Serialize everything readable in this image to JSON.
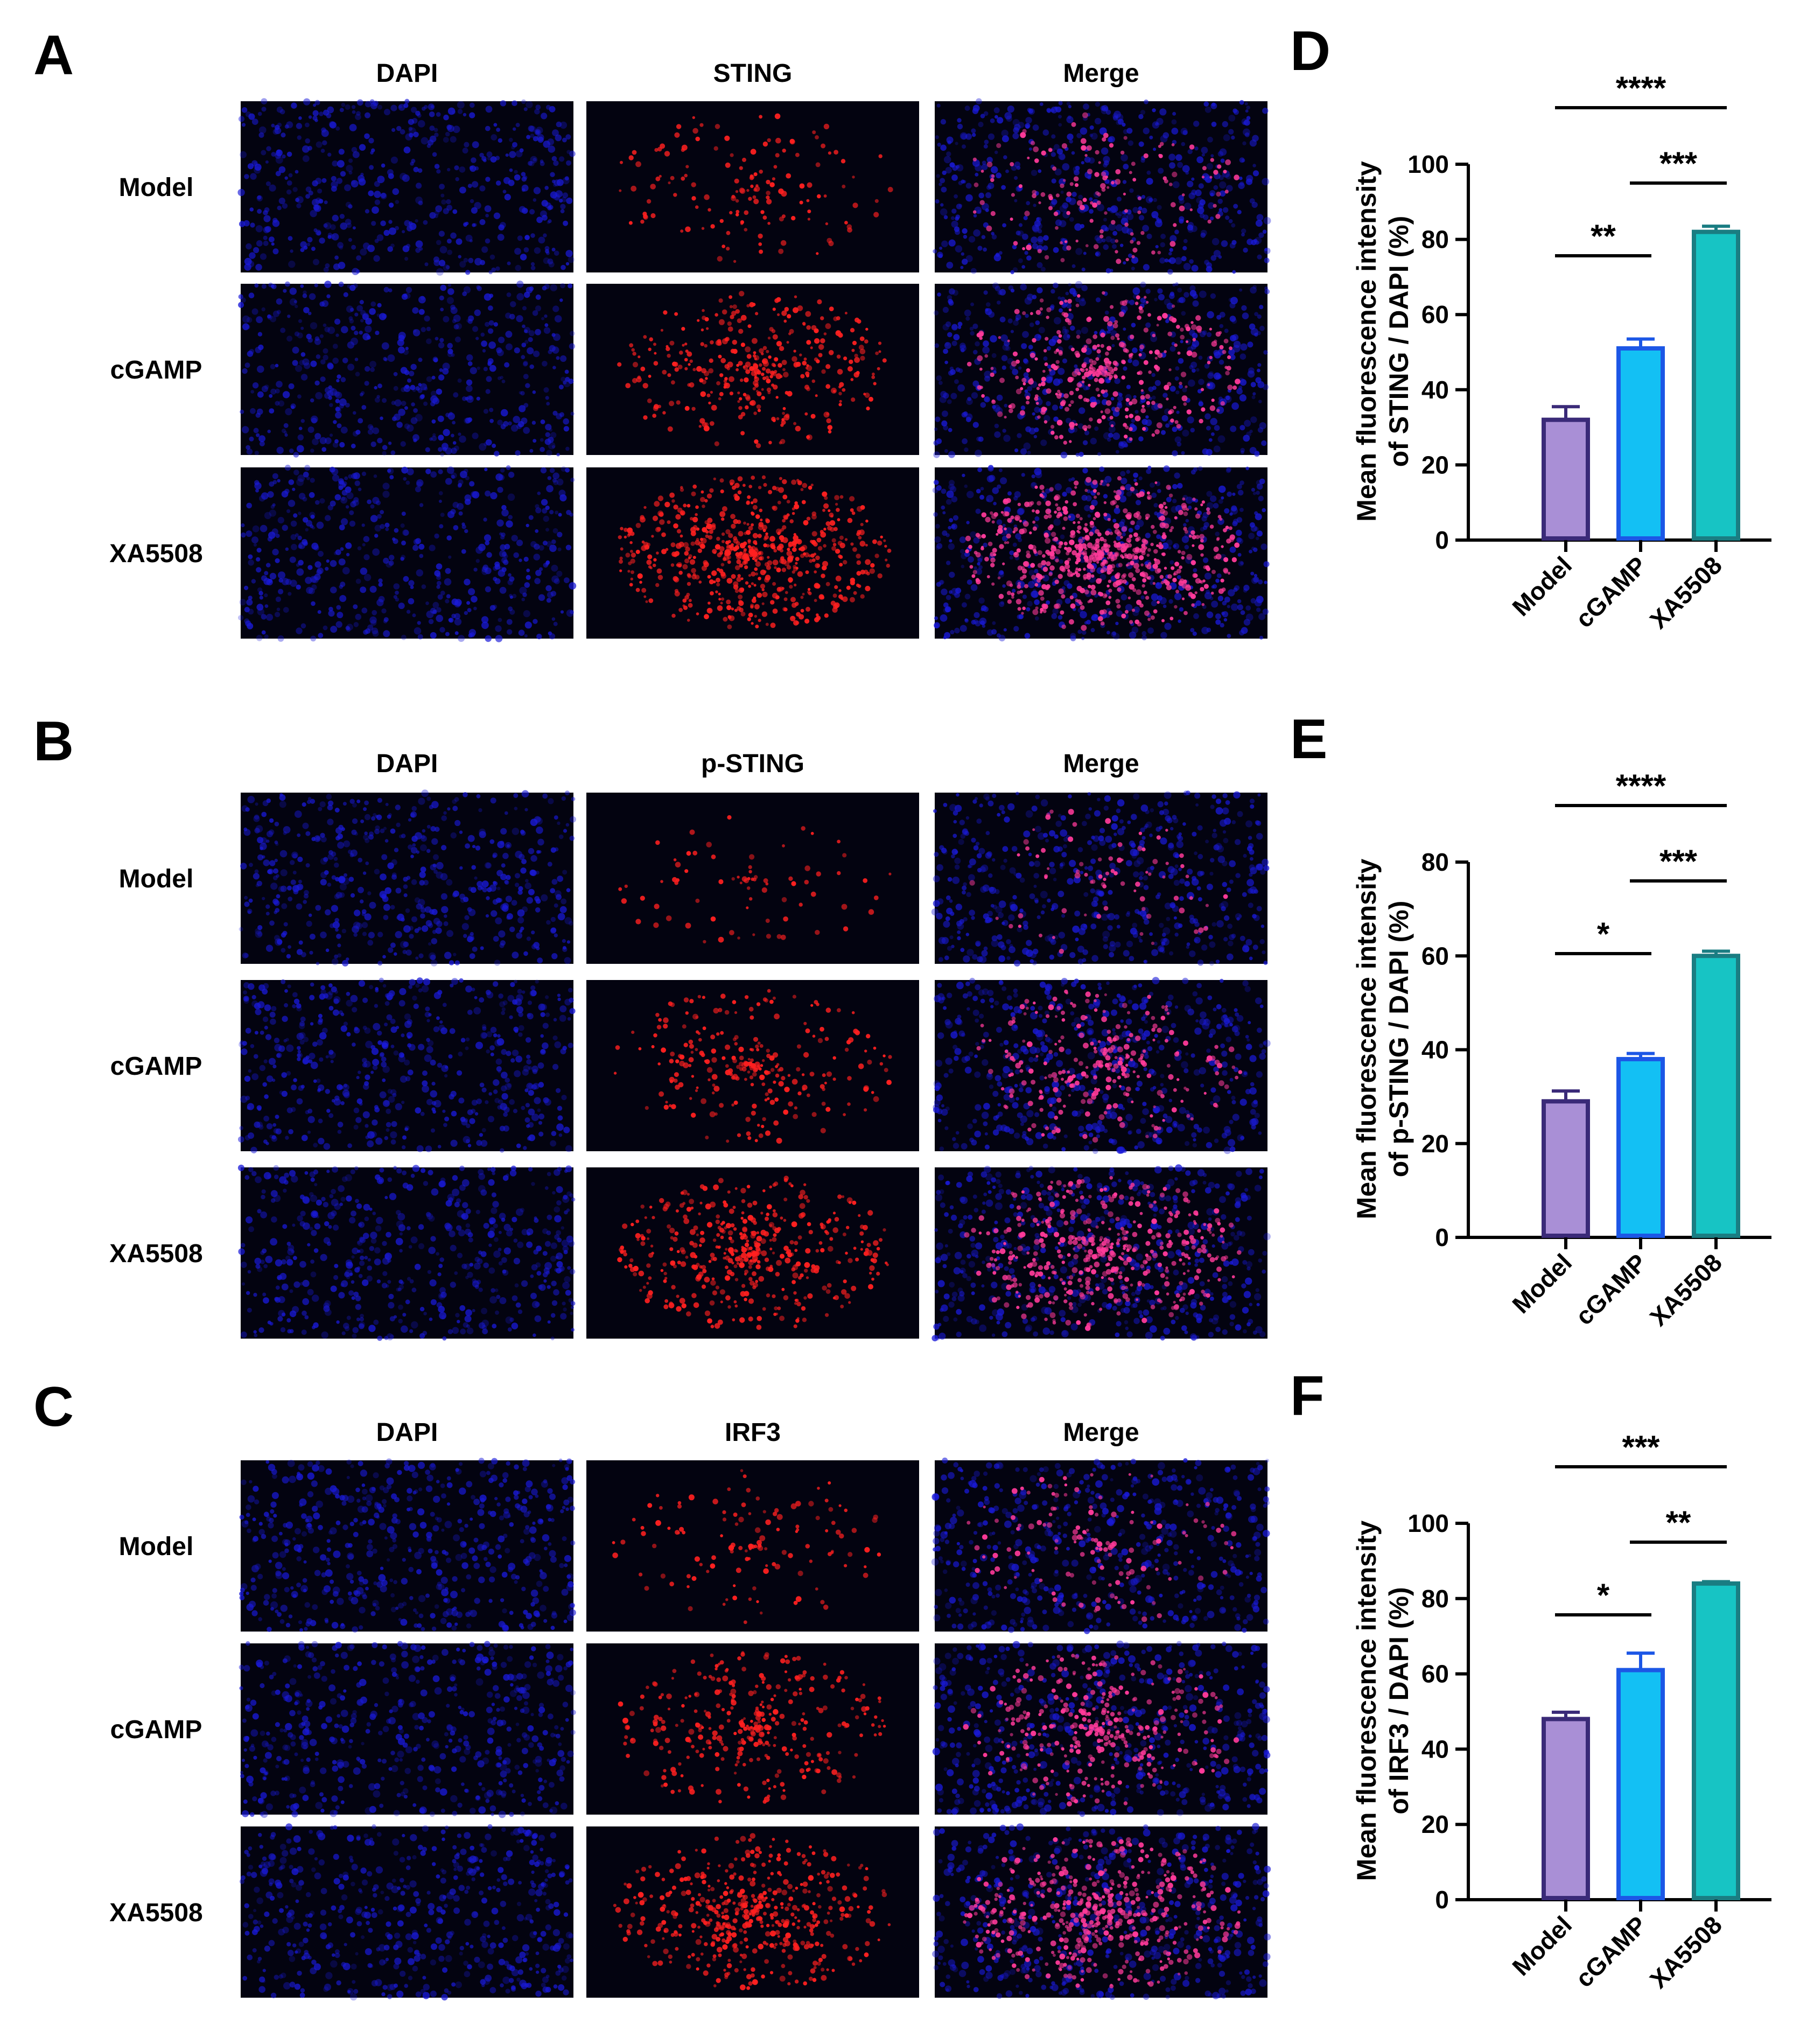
{
  "micrograph_panels": [
    {
      "label": "A",
      "columns": [
        "DAPI",
        "STING",
        "Merge"
      ],
      "rows": [
        "Model",
        "cGAMP",
        "XA5508"
      ],
      "marker_density": [
        0.15,
        0.45,
        0.85
      ]
    },
    {
      "label": "B",
      "columns": [
        "DAPI",
        "p-STING",
        "Merge"
      ],
      "rows": [
        "Model",
        "cGAMP",
        "XA5508"
      ],
      "marker_density": [
        0.05,
        0.3,
        0.55
      ]
    },
    {
      "label": "C",
      "columns": [
        "DAPI",
        "IRF3",
        "Merge"
      ],
      "rows": [
        "Model",
        "cGAMP",
        "XA5508"
      ],
      "marker_density": [
        0.12,
        0.4,
        0.6
      ]
    }
  ],
  "colors": {
    "dapi": "#1a1ad8",
    "marker": "#ff2020",
    "bar_fill": [
      "#a98fd6",
      "#13c0f4",
      "#17c4c4"
    ],
    "bar_edge": [
      "#3a2a78",
      "#1c57e6",
      "#1a7d82"
    ]
  },
  "chart_data": [
    {
      "label": "D",
      "type": "bar",
      "categories": [
        "Model",
        "cGAMP",
        "XA5508"
      ],
      "values": [
        32,
        51,
        82
      ],
      "errors": [
        3.5,
        2.5,
        1.5
      ],
      "ylabel_line1": "Mean fluorescence intensity",
      "ylabel_line2": "of STING / DAPI (%)",
      "ylim": [
        0,
        100
      ],
      "yticks": [
        "0",
        "20",
        "40",
        "60",
        "80",
        "100"
      ],
      "significance": [
        {
          "from": 0,
          "to": 1,
          "text": "**"
        },
        {
          "from": 1,
          "to": 2,
          "text": "***"
        },
        {
          "from": 0,
          "to": 2,
          "text": "****"
        }
      ]
    },
    {
      "label": "E",
      "type": "bar",
      "categories": [
        "Model",
        "cGAMP",
        "XA5508"
      ],
      "values": [
        29,
        38,
        60
      ],
      "errors": [
        2.2,
        1.2,
        1.0
      ],
      "ylabel_line1": "Mean fluorescence intensity",
      "ylabel_line2": "of p-STING / DAPI (%)",
      "ylim": [
        0,
        80
      ],
      "yticks": [
        "0",
        "20",
        "40",
        "60",
        "80"
      ],
      "significance": [
        {
          "from": 0,
          "to": 1,
          "text": "*"
        },
        {
          "from": 1,
          "to": 2,
          "text": "***"
        },
        {
          "from": 0,
          "to": 2,
          "text": "****"
        }
      ]
    },
    {
      "label": "F",
      "type": "bar",
      "categories": [
        "Model",
        "cGAMP",
        "XA5508"
      ],
      "values": [
        48,
        61,
        84
      ],
      "errors": [
        1.8,
        4.5,
        0.5
      ],
      "ylabel_line1": "Mean fluorescence intensity",
      "ylabel_line2": "of IRF3 / DAPI (%)",
      "ylim": [
        0,
        100
      ],
      "yticks": [
        "0",
        "20",
        "40",
        "60",
        "80",
        "100"
      ],
      "significance": [
        {
          "from": 0,
          "to": 1,
          "text": "*"
        },
        {
          "from": 1,
          "to": 2,
          "text": "**"
        },
        {
          "from": 0,
          "to": 2,
          "text": "***"
        }
      ]
    }
  ]
}
